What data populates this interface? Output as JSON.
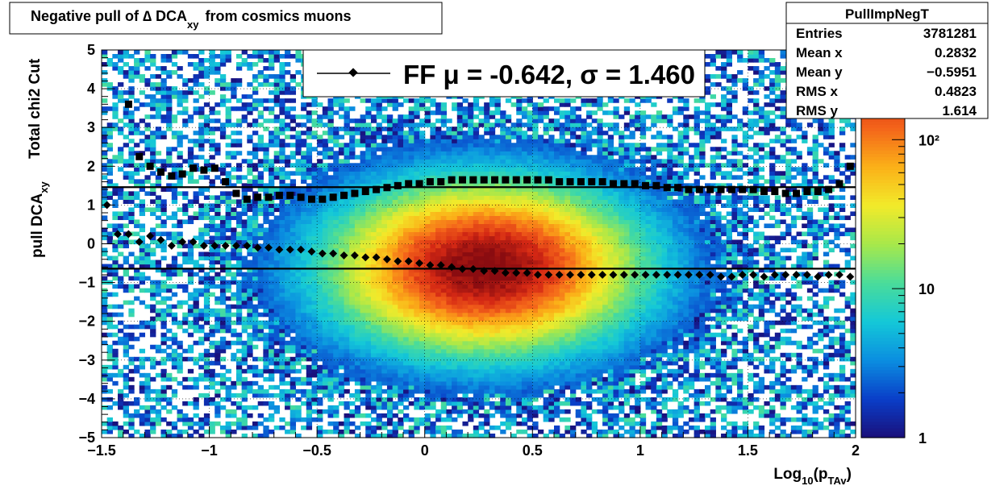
{
  "title": {
    "main": "Negative pull of ∆ DCA",
    "sub": "xy",
    "rest": "from cosmics muons"
  },
  "stats": {
    "name": "PullImpNegT",
    "rows": [
      {
        "label": "Entries",
        "value": "3781281"
      },
      {
        "label": "Mean x",
        "value": "0.2832"
      },
      {
        "label": "Mean y",
        "value": "−0.5951"
      },
      {
        "label": "RMS x",
        "value": "0.4823"
      },
      {
        "label": "RMS y",
        "value": "1.614"
      }
    ]
  },
  "legend": {
    "text": "FF μ = -0.642, σ =   1.460"
  },
  "colors": {
    "palette": [
      "#1a0f7a",
      "#0a3ec8",
      "#0b8ee0",
      "#14c8d8",
      "#4adc9a",
      "#a8e84a",
      "#f2ea2a",
      "#fbb018",
      "#f4641a",
      "#d42814",
      "#8a0c10"
    ],
    "marker": "#000000",
    "frame": "#000000"
  },
  "chart_data": {
    "type": "heatmap",
    "xlabel": {
      "base": "Log",
      "sub1": "10",
      "mid": "(p",
      "sub2": "TAv",
      "end": ")"
    },
    "ylabel": {
      "line1": "Total chi2 Cut",
      "line2_base": "pull DCA",
      "line2_sub": "xy"
    },
    "xlim": [
      -1.5,
      2
    ],
    "ylim": [
      -5,
      5
    ],
    "x_ticks": [
      -1.5,
      -1,
      -0.5,
      0,
      0.5,
      1,
      1.5,
      2
    ],
    "x_tick_labels": [
      "−1.5",
      "−1",
      "−0.5",
      "0",
      "0.5",
      "1",
      "1.5",
      "2"
    ],
    "y_ticks": [
      -5,
      -4,
      -3,
      -2,
      -1,
      0,
      1,
      2,
      3,
      4,
      5
    ],
    "y_tick_labels": [
      "−5",
      "−4",
      "−3",
      "−2",
      "−1",
      "0",
      "1",
      "2",
      "3",
      "4",
      "5"
    ],
    "grid": true,
    "colorbar": {
      "log_scale": true,
      "range": [
        1,
        400
      ],
      "tick_values": [
        1,
        10,
        100
      ],
      "tick_labels": [
        "1",
        "10",
        "10²"
      ]
    },
    "density_peak": {
      "x": 0.28,
      "y": -0.6
    },
    "lines": [
      {
        "name": "mean_fit",
        "y": -0.642
      },
      {
        "name": "sigma_fit",
        "y": 1.46
      }
    ],
    "x_points": [
      -1.475,
      -1.425,
      -1.375,
      -1.325,
      -1.275,
      -1.225,
      -1.175,
      -1.125,
      -1.075,
      -1.025,
      -0.975,
      -0.925,
      -0.875,
      -0.825,
      -0.775,
      -0.725,
      -0.675,
      -0.625,
      -0.575,
      -0.525,
      -0.475,
      -0.425,
      -0.375,
      -0.325,
      -0.275,
      -0.225,
      -0.175,
      -0.125,
      -0.075,
      -0.025,
      0.025,
      0.075,
      0.125,
      0.175,
      0.225,
      0.275,
      0.325,
      0.375,
      0.425,
      0.475,
      0.525,
      0.575,
      0.625,
      0.675,
      0.725,
      0.775,
      0.825,
      0.875,
      0.925,
      0.975,
      1.025,
      1.075,
      1.125,
      1.175,
      1.225,
      1.275,
      1.325,
      1.375,
      1.425,
      1.475,
      1.525,
      1.575,
      1.625,
      1.675,
      1.725,
      1.775,
      1.825,
      1.875,
      1.925,
      1.975
    ],
    "series": [
      {
        "name": "mean",
        "marker": "diamond",
        "values": [
          1.0,
          0.25,
          0.25,
          0.05,
          0.2,
          0.1,
          -0.05,
          0.05,
          0.05,
          -0.05,
          -0.05,
          -0.05,
          -0.05,
          -0.05,
          -0.1,
          -0.1,
          -0.15,
          -0.15,
          -0.15,
          -0.2,
          -0.25,
          -0.25,
          -0.3,
          -0.3,
          -0.35,
          -0.35,
          -0.4,
          -0.45,
          -0.45,
          -0.5,
          -0.55,
          -0.55,
          -0.6,
          -0.65,
          -0.65,
          -0.7,
          -0.7,
          -0.75,
          -0.75,
          -0.75,
          -0.8,
          -0.8,
          -0.8,
          -0.8,
          -0.8,
          -0.8,
          -0.8,
          -0.8,
          -0.8,
          -0.8,
          -0.8,
          -0.8,
          -0.8,
          -0.8,
          -0.8,
          -0.8,
          -0.8,
          -0.85,
          -0.85,
          -0.8,
          -0.8,
          -0.85,
          -0.8,
          -0.8,
          -0.8,
          -0.8,
          -0.85,
          -0.8,
          -0.8,
          -0.85
        ]
      },
      {
        "name": "sigma",
        "marker": "square",
        "values": [
          null,
          null,
          3.6,
          2.25,
          2.0,
          1.85,
          1.75,
          1.8,
          1.95,
          1.9,
          1.95,
          1.6,
          1.3,
          1.15,
          1.2,
          1.2,
          1.25,
          1.25,
          1.2,
          1.15,
          1.15,
          1.2,
          1.25,
          1.3,
          1.35,
          1.4,
          1.45,
          1.5,
          1.55,
          1.55,
          1.6,
          1.6,
          1.65,
          1.65,
          1.65,
          1.65,
          1.65,
          1.65,
          1.65,
          1.65,
          1.65,
          1.65,
          1.6,
          1.6,
          1.6,
          1.6,
          1.6,
          1.55,
          1.55,
          1.55,
          1.5,
          1.5,
          1.45,
          1.45,
          1.4,
          1.4,
          1.4,
          1.4,
          1.4,
          1.4,
          1.4,
          1.35,
          1.35,
          1.3,
          1.3,
          1.35,
          1.35,
          1.4,
          1.55,
          2.0
        ]
      }
    ]
  }
}
